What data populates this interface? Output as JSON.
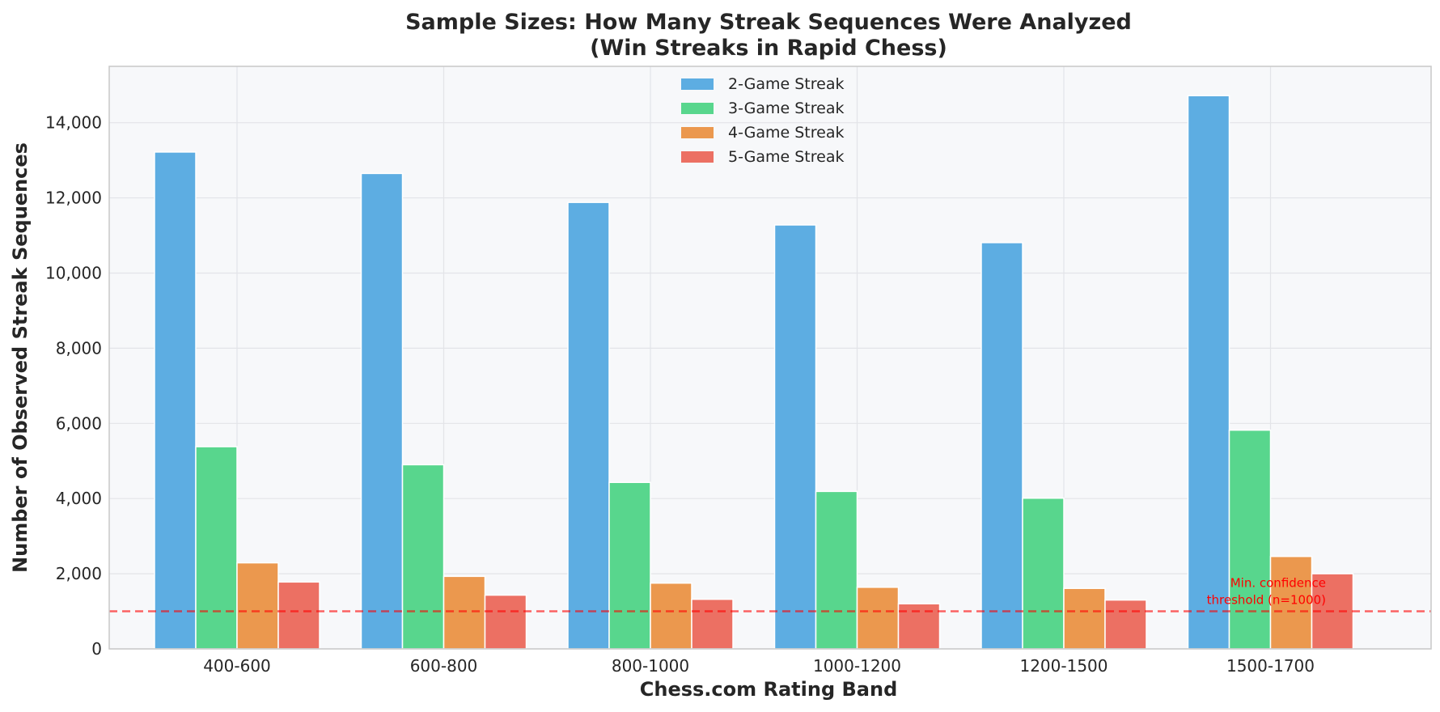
{
  "chart_data": {
    "type": "bar",
    "title": "Sample Sizes: How Many Streak Sequences Were Analyzed",
    "subtitle": "(Win Streaks in Rapid Chess)",
    "xlabel": "Chess.com Rating Band",
    "ylabel": "Number of Observed Streak Sequences",
    "categories": [
      "400-600",
      "600-800",
      "800-1000",
      "1000-1200",
      "1200-1500",
      "1500-1700"
    ],
    "series": [
      {
        "name": "2-Game Streak",
        "color": "#5DADE2",
        "values": [
          13220,
          12650,
          11880,
          11280,
          10810,
          14720
        ]
      },
      {
        "name": "3-Game Streak",
        "color": "#58D68D",
        "values": [
          5380,
          4900,
          4430,
          4190,
          4010,
          5820
        ]
      },
      {
        "name": "4-Game Streak",
        "color": "#EB984E",
        "values": [
          2290,
          1930,
          1750,
          1640,
          1610,
          2460
        ]
      },
      {
        "name": "5-Game Streak",
        "color": "#EC7063",
        "values": [
          1780,
          1430,
          1320,
          1200,
          1300,
          2000
        ]
      }
    ],
    "ylim": [
      0,
      15500
    ],
    "yticks": [
      0,
      2000,
      4000,
      6000,
      8000,
      10000,
      12000,
      14000
    ],
    "ytick_labels": [
      "0",
      "2,000",
      "4,000",
      "6,000",
      "8,000",
      "10,000",
      "12,000",
      "14,000"
    ],
    "grid": true,
    "legend_position": "top-center",
    "threshold": {
      "value": 1000,
      "color": "#ff0000",
      "style": "dashed",
      "label_line1": "Min. confidence",
      "label_line2": "threshold (n=1000)"
    },
    "plot_background": "#F7F8FA"
  }
}
